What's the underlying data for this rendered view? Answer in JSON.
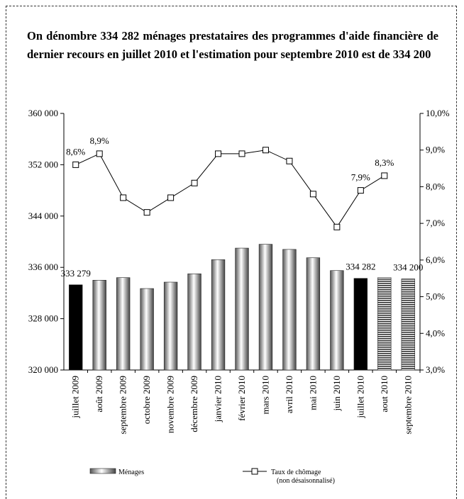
{
  "chart_data": {
    "type": "bar_line",
    "title": "On dénombre 334 282 ménages prestataires des programmes d'aide financière de dernier recours en juillet 2010 et l'estimation pour septembre 2010 est de 334 200",
    "categories": [
      "juillet 2009",
      "août 2009",
      "septembre 2009",
      "octobre 2009",
      "novembre 2009",
      "décembre 2009",
      "janvier 2010",
      "février 2010",
      "mars 2010",
      "avril 2010",
      "mai 2010",
      "juin 2010",
      "juillet 2010",
      "aout 2010",
      "septembre 2010"
    ],
    "series": [
      {
        "name": "Ménages",
        "type": "bar",
        "axis": "y",
        "values": [
          333279,
          334000,
          334400,
          332700,
          333700,
          335000,
          337200,
          339000,
          339600,
          338800,
          337500,
          335500,
          334282,
          334400,
          334200
        ],
        "value_labels": [
          "333 279",
          null,
          null,
          null,
          null,
          null,
          null,
          null,
          null,
          null,
          null,
          null,
          "334 282",
          null,
          "334 200"
        ],
        "styles": [
          "solid",
          "gradient",
          "gradient",
          "gradient",
          "gradient",
          "gradient",
          "gradient",
          "gradient",
          "gradient",
          "gradient",
          "gradient",
          "gradient",
          "solid",
          "striped",
          "striped"
        ],
        "color": "#000000"
      },
      {
        "name": "Taux de chômage",
        "type": "line",
        "axis": "y2",
        "legend_note": "(non désaisonnalisé)",
        "values": [
          8.6,
          8.9,
          7.7,
          7.3,
          7.7,
          8.1,
          8.9,
          8.9,
          9.0,
          8.7,
          7.8,
          6.9,
          7.9,
          8.3,
          null
        ],
        "value_labels": [
          "8,6%",
          "8,9%",
          null,
          null,
          null,
          null,
          null,
          null,
          null,
          null,
          null,
          null,
          "7,9%",
          "8,3%",
          null
        ],
        "color": "#000000"
      }
    ],
    "ylim": [
      320000,
      360000
    ],
    "yticks": [
      {
        "value": 320000,
        "label": "320 000"
      },
      {
        "value": 328000,
        "label": "328 000"
      },
      {
        "value": 336000,
        "label": "336 000"
      },
      {
        "value": 344000,
        "label": "344 000"
      },
      {
        "value": 352000,
        "label": "352 000"
      },
      {
        "value": 360000,
        "label": "360 000"
      }
    ],
    "y2lim": [
      3,
      10
    ],
    "y2ticks": [
      {
        "value": 3,
        "label": "3,0%"
      },
      {
        "value": 4,
        "label": "4,0%"
      },
      {
        "value": 5,
        "label": "5,0%"
      },
      {
        "value": 6,
        "label": "6,0%"
      },
      {
        "value": 7,
        "label": "7,0%"
      },
      {
        "value": 8,
        "label": "8,0%"
      },
      {
        "value": 9,
        "label": "9,0%"
      },
      {
        "value": 10,
        "label": "10,0%"
      }
    ],
    "grid": false
  }
}
